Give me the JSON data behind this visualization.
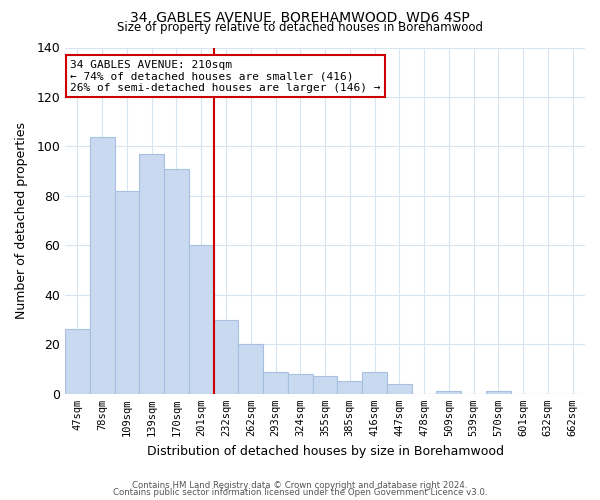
{
  "title": "34, GABLES AVENUE, BOREHAMWOOD, WD6 4SP",
  "subtitle": "Size of property relative to detached houses in Borehamwood",
  "xlabel": "Distribution of detached houses by size in Borehamwood",
  "ylabel": "Number of detached properties",
  "categories": [
    "47sqm",
    "78sqm",
    "109sqm",
    "139sqm",
    "170sqm",
    "201sqm",
    "232sqm",
    "262sqm",
    "293sqm",
    "324sqm",
    "355sqm",
    "385sqm",
    "416sqm",
    "447sqm",
    "478sqm",
    "509sqm",
    "539sqm",
    "570sqm",
    "601sqm",
    "632sqm",
    "662sqm"
  ],
  "values": [
    26,
    104,
    82,
    97,
    91,
    60,
    30,
    20,
    9,
    8,
    7,
    5,
    9,
    4,
    0,
    1,
    0,
    1,
    0,
    0,
    0
  ],
  "bar_color": "#c8d9f0",
  "bar_edge_color": "#a8c0e0",
  "vline_x": 5.5,
  "vline_color": "#cc0000",
  "ylim": [
    0,
    140
  ],
  "yticks": [
    0,
    20,
    40,
    60,
    80,
    100,
    120,
    140
  ],
  "annotation_title": "34 GABLES AVENUE: 210sqm",
  "annotation_line1": "← 74% of detached houses are smaller (416)",
  "annotation_line2": "26% of semi-detached houses are larger (146) →",
  "annotation_box_color": "#ffffff",
  "annotation_box_edge": "#cc0000",
  "footer_line1": "Contains HM Land Registry data © Crown copyright and database right 2024.",
  "footer_line2": "Contains public sector information licensed under the Open Government Licence v3.0.",
  "background_color": "#ffffff",
  "grid_color": "#d8e4f0"
}
